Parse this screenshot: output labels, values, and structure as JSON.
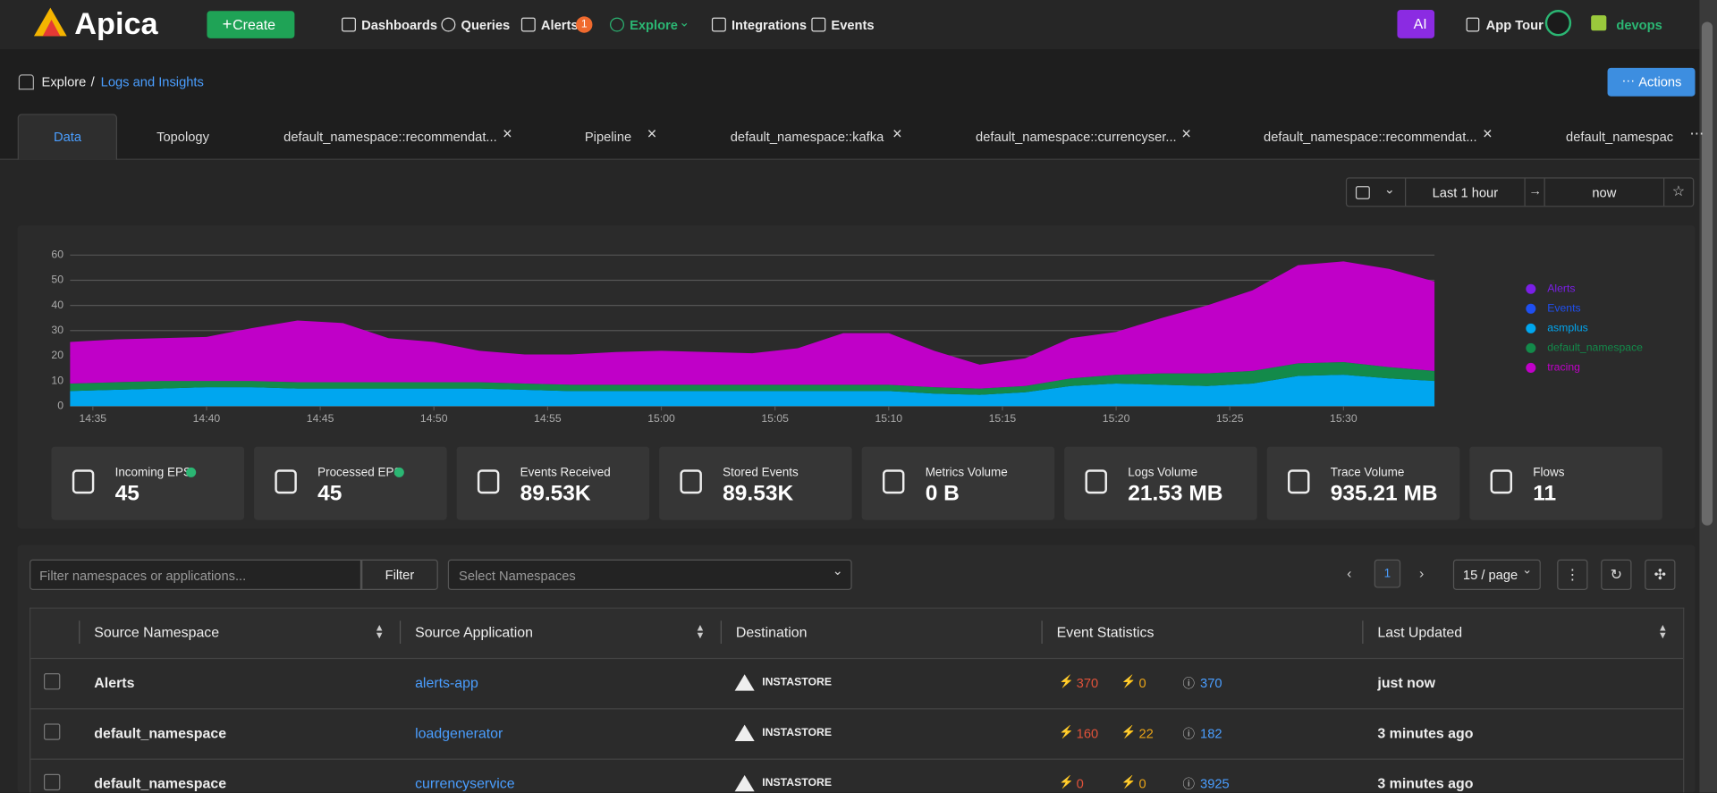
{
  "nav": {
    "logo": "Apica",
    "create": "Create",
    "items": [
      "Dashboards",
      "Queries",
      "Alerts",
      "Explore",
      "Integrations",
      "Events"
    ],
    "alerts_badge": "1",
    "ai": "AI",
    "app_tour": "App Tour",
    "user": "devops"
  },
  "breadcrumb": [
    "Explore",
    "Logs and Insights"
  ],
  "actions": "Actions",
  "tabs": [
    "Data",
    "Topology",
    "default_namespace::recommendat...",
    "Pipeline",
    "default_namespace::kafka",
    "default_namespace::currencyser...",
    "default_namespace::recommendat...",
    "default_namespace"
  ],
  "time_range": {
    "from": "Last 1 hour",
    "to": "now"
  },
  "chart_data": {
    "type": "area",
    "stacked": true,
    "x": [
      "14:34",
      "14:36",
      "14:38",
      "14:40",
      "14:42",
      "14:44",
      "14:46",
      "14:48",
      "14:50",
      "14:52",
      "14:54",
      "14:56",
      "14:58",
      "15:00",
      "15:02",
      "15:04",
      "15:06",
      "15:08",
      "15:10",
      "15:12",
      "15:14",
      "15:16",
      "15:18",
      "15:20",
      "15:22",
      "15:24",
      "15:26",
      "15:28",
      "15:30",
      "15:32",
      "15:34"
    ],
    "xlim": [
      "14:34",
      "15:34"
    ],
    "xticks": [
      "14:35",
      "14:40",
      "14:45",
      "14:50",
      "14:55",
      "15:00",
      "15:05",
      "15:10",
      "15:15",
      "15:20",
      "15:25",
      "15:30"
    ],
    "ylim": [
      0,
      60
    ],
    "yticks": [
      0,
      10,
      20,
      30,
      40,
      50,
      60
    ],
    "grid": true,
    "series": [
      {
        "name": "Alerts",
        "color": "#7a1fe6",
        "values": [
          0,
          0,
          0,
          0,
          0,
          0,
          0,
          0,
          0,
          0,
          0,
          0,
          0,
          0,
          0,
          0,
          0,
          0,
          0,
          0,
          0,
          0,
          0,
          0,
          0,
          0,
          0,
          0,
          0,
          0,
          0
        ]
      },
      {
        "name": "Events",
        "color": "#1f4ff0",
        "values": [
          0,
          0,
          0,
          0,
          0,
          0,
          0,
          0,
          0,
          0,
          0,
          0,
          0,
          0,
          0,
          0,
          0,
          0,
          0,
          0,
          0,
          0,
          0,
          0,
          0,
          0,
          0,
          0,
          0,
          0,
          0
        ]
      },
      {
        "name": "asmplus",
        "color": "#00a6ef",
        "values": [
          6,
          6.5,
          7,
          7.5,
          7.5,
          7,
          7,
          7,
          7,
          7,
          6.5,
          6,
          6,
          6,
          6,
          6,
          6,
          6,
          6,
          5,
          4.5,
          5.5,
          8,
          9,
          8.5,
          8,
          9,
          12,
          12.5,
          11,
          10
        ]
      },
      {
        "name": "default_namespace",
        "color": "#138a4a",
        "values": [
          3,
          3,
          3,
          2.5,
          2.5,
          2.5,
          2.5,
          2.5,
          2.5,
          2.5,
          2.5,
          2.5,
          2.5,
          2.5,
          2.5,
          2.5,
          2.5,
          2.5,
          2.5,
          2.5,
          2.5,
          2.5,
          3,
          3.5,
          4.5,
          5,
          5,
          5,
          5,
          4.5,
          4
        ]
      },
      {
        "name": "tracing",
        "color": "#c000c8",
        "values": [
          16.5,
          17,
          17,
          17.5,
          21,
          24.5,
          23.5,
          17.5,
          16,
          12.5,
          11.5,
          12,
          13,
          13.5,
          13,
          12.5,
          14.5,
          20.5,
          20.5,
          14.5,
          9.5,
          11,
          16,
          17,
          22,
          27,
          32,
          39,
          40,
          39,
          35.5
        ]
      }
    ]
  },
  "stats": [
    {
      "label": "Incoming EPS",
      "value": "45"
    },
    {
      "label": "Processed EPS",
      "value": "45"
    },
    {
      "label": "Events Received",
      "value": "89.53K"
    },
    {
      "label": "Stored Events",
      "value": "89.53K"
    },
    {
      "label": "Metrics Volume",
      "value": "0 B"
    },
    {
      "label": "Logs Volume",
      "value": "21.53 MB"
    },
    {
      "label": "Trace Volume",
      "value": "935.21 MB"
    },
    {
      "label": "Flows",
      "value": "11"
    }
  ],
  "filter": {
    "placeholder": "Filter namespaces or applications...",
    "button": "Filter",
    "select": "Select Namespaces"
  },
  "pagination": {
    "page": "1",
    "page_size": "15 / page"
  },
  "table": {
    "headers": [
      "Source Namespace",
      "Source Application",
      "Destination",
      "Event Statistics",
      "Last Updated"
    ],
    "rows": [
      [
        "Alerts",
        "alerts-app",
        "INSTASTORE",
        "370",
        "0",
        "370",
        "just now"
      ],
      [
        "default_namespace",
        "loadgenerator",
        "INSTASTORE",
        "160",
        "22",
        "182",
        "3 minutes ago"
      ],
      [
        "default_namespace",
        "currencyservice",
        "INSTASTORE",
        "0",
        "0",
        "3925",
        "3 minutes ago"
      ]
    ]
  }
}
